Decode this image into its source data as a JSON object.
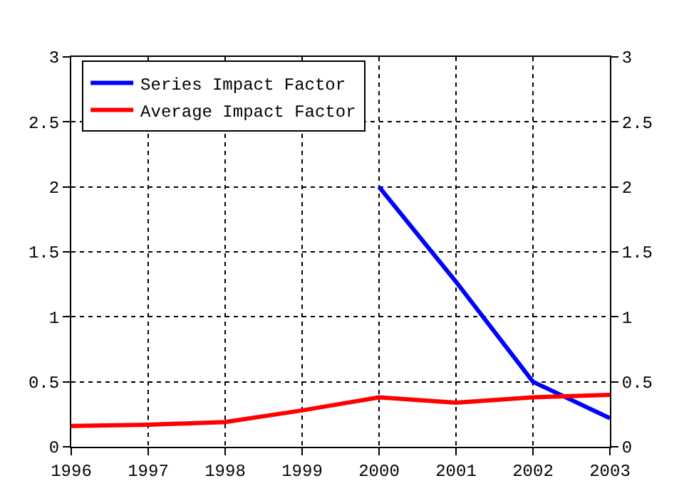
{
  "chart_data": {
    "type": "line",
    "x": [
      1996,
      1997,
      1998,
      1999,
      2000,
      2001,
      2002,
      2003
    ],
    "series": [
      {
        "name": "Series Impact Factor",
        "color": "#0000ff",
        "values": [
          null,
          null,
          null,
          null,
          2.0,
          1.27,
          0.5,
          0.22
        ]
      },
      {
        "name": "Average Impact Factor",
        "color": "#ff0000",
        "values": [
          0.16,
          0.17,
          0.19,
          0.28,
          0.38,
          0.34,
          0.38,
          0.4
        ]
      }
    ],
    "xlim": [
      1996,
      2003
    ],
    "xticks": [
      1996,
      1997,
      1998,
      1999,
      2000,
      2001,
      2002,
      2003
    ],
    "ylim": [
      0,
      3
    ],
    "yticks": [
      0,
      0.5,
      1,
      1.5,
      2,
      2.5,
      3
    ],
    "y2lim": [
      0,
      3
    ],
    "y2ticks": [
      0,
      0.5,
      1,
      1.5,
      2,
      2.5,
      3
    ],
    "grid": true,
    "legend": "top left",
    "marker": "none",
    "line_style": "solid"
  }
}
